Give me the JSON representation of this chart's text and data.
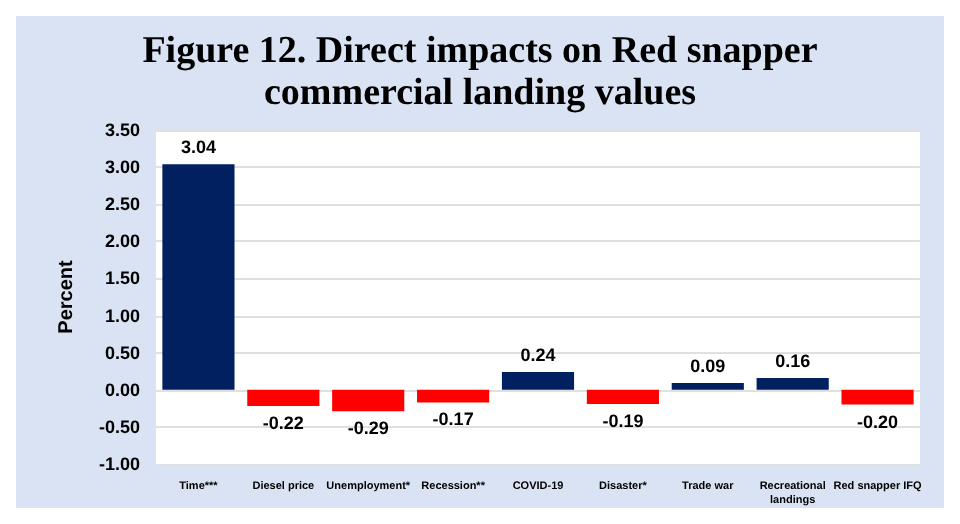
{
  "chart_data": {
    "type": "bar",
    "title": "Figure 12. Direct impacts on Red snapper\ncommercial landing values",
    "ylabel": "Percent",
    "categories": [
      "Time***",
      "Diesel price",
      "Unemployment*",
      "Recession**",
      "COVID-19",
      "Disaster*",
      "Trade war",
      "Recreational\nlandings",
      "Red snapper IFQ"
    ],
    "values": [
      3.04,
      -0.22,
      -0.29,
      -0.17,
      0.24,
      -0.19,
      0.09,
      0.16,
      -0.2
    ],
    "colors": [
      "#002060",
      "#ff0000",
      "#ff0000",
      "#ff0000",
      "#002060",
      "#ff0000",
      "#002060",
      "#002060",
      "#ff0000"
    ],
    "value_labels": [
      "3.04",
      "-0.22",
      "-0.29",
      "-0.17",
      "0.24",
      "-0.19",
      "0.09",
      "0.16",
      "-0.20"
    ],
    "ylim": [
      -1,
      3.5
    ],
    "yticks": [
      {
        "value": -1,
        "label": "-1.00"
      },
      {
        "value": -0.5,
        "label": "-0.50"
      },
      {
        "value": 0,
        "label": "0.00"
      },
      {
        "value": 0.5,
        "label": "0.50"
      },
      {
        "value": 1,
        "label": "1.00"
      },
      {
        "value": 1.5,
        "label": "1.50"
      },
      {
        "value": 2,
        "label": "2.00"
      },
      {
        "value": 2.5,
        "label": "2.50"
      },
      {
        "value": 3,
        "label": "3.00"
      },
      {
        "value": 3.5,
        "label": "3.50"
      }
    ],
    "grid": "y"
  }
}
